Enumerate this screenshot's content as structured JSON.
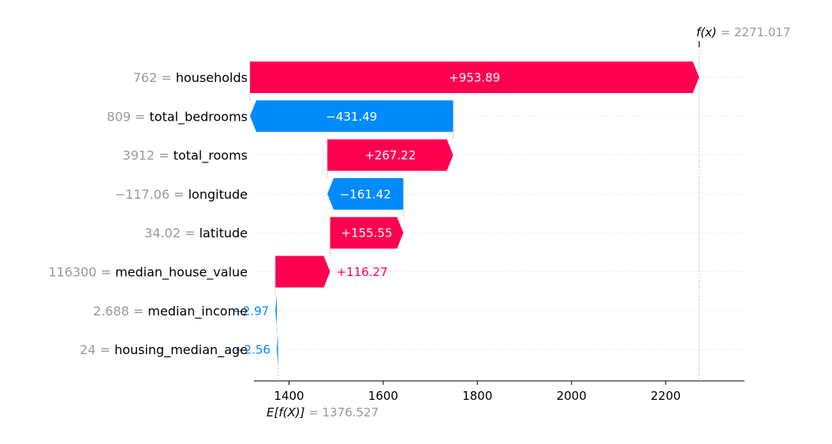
{
  "chart_data": {
    "type": "waterfall",
    "base_value": 1376.527,
    "base_label": {
      "lhs": "E[f(X)]",
      "value": "1376.527"
    },
    "output_value": 2271.017,
    "output_label": {
      "lhs": "f(x)",
      "value": "2271.017"
    },
    "features": [
      {
        "value": "762",
        "name": "households",
        "contribution": 953.89,
        "label": "+953.89"
      },
      {
        "value": "809",
        "name": "total_bedrooms",
        "contribution": -431.49,
        "label": "−431.49"
      },
      {
        "value": "3912",
        "name": "total_rooms",
        "contribution": 267.22,
        "label": "+267.22"
      },
      {
        "value": "−117.06",
        "name": "longitude",
        "contribution": -161.42,
        "label": "−161.42"
      },
      {
        "value": "34.02",
        "name": "latitude",
        "contribution": 155.55,
        "label": "+155.55"
      },
      {
        "value": "116300",
        "name": "median_house_value",
        "contribution": 116.27,
        "label": "+116.27"
      },
      {
        "value": "2.688",
        "name": "median_income",
        "contribution": -2.97,
        "label": "−2.97"
      },
      {
        "value": "24",
        "name": "housing_median_age",
        "contribution": -2.56,
        "label": "−2.56"
      }
    ],
    "x_ticks": [
      1400,
      1600,
      1800,
      2000,
      2200
    ],
    "x_range": [
      1325,
      2330
    ],
    "colors": {
      "positive": "#ff0051",
      "negative": "#008bfb",
      "neutral": "#999999"
    }
  }
}
